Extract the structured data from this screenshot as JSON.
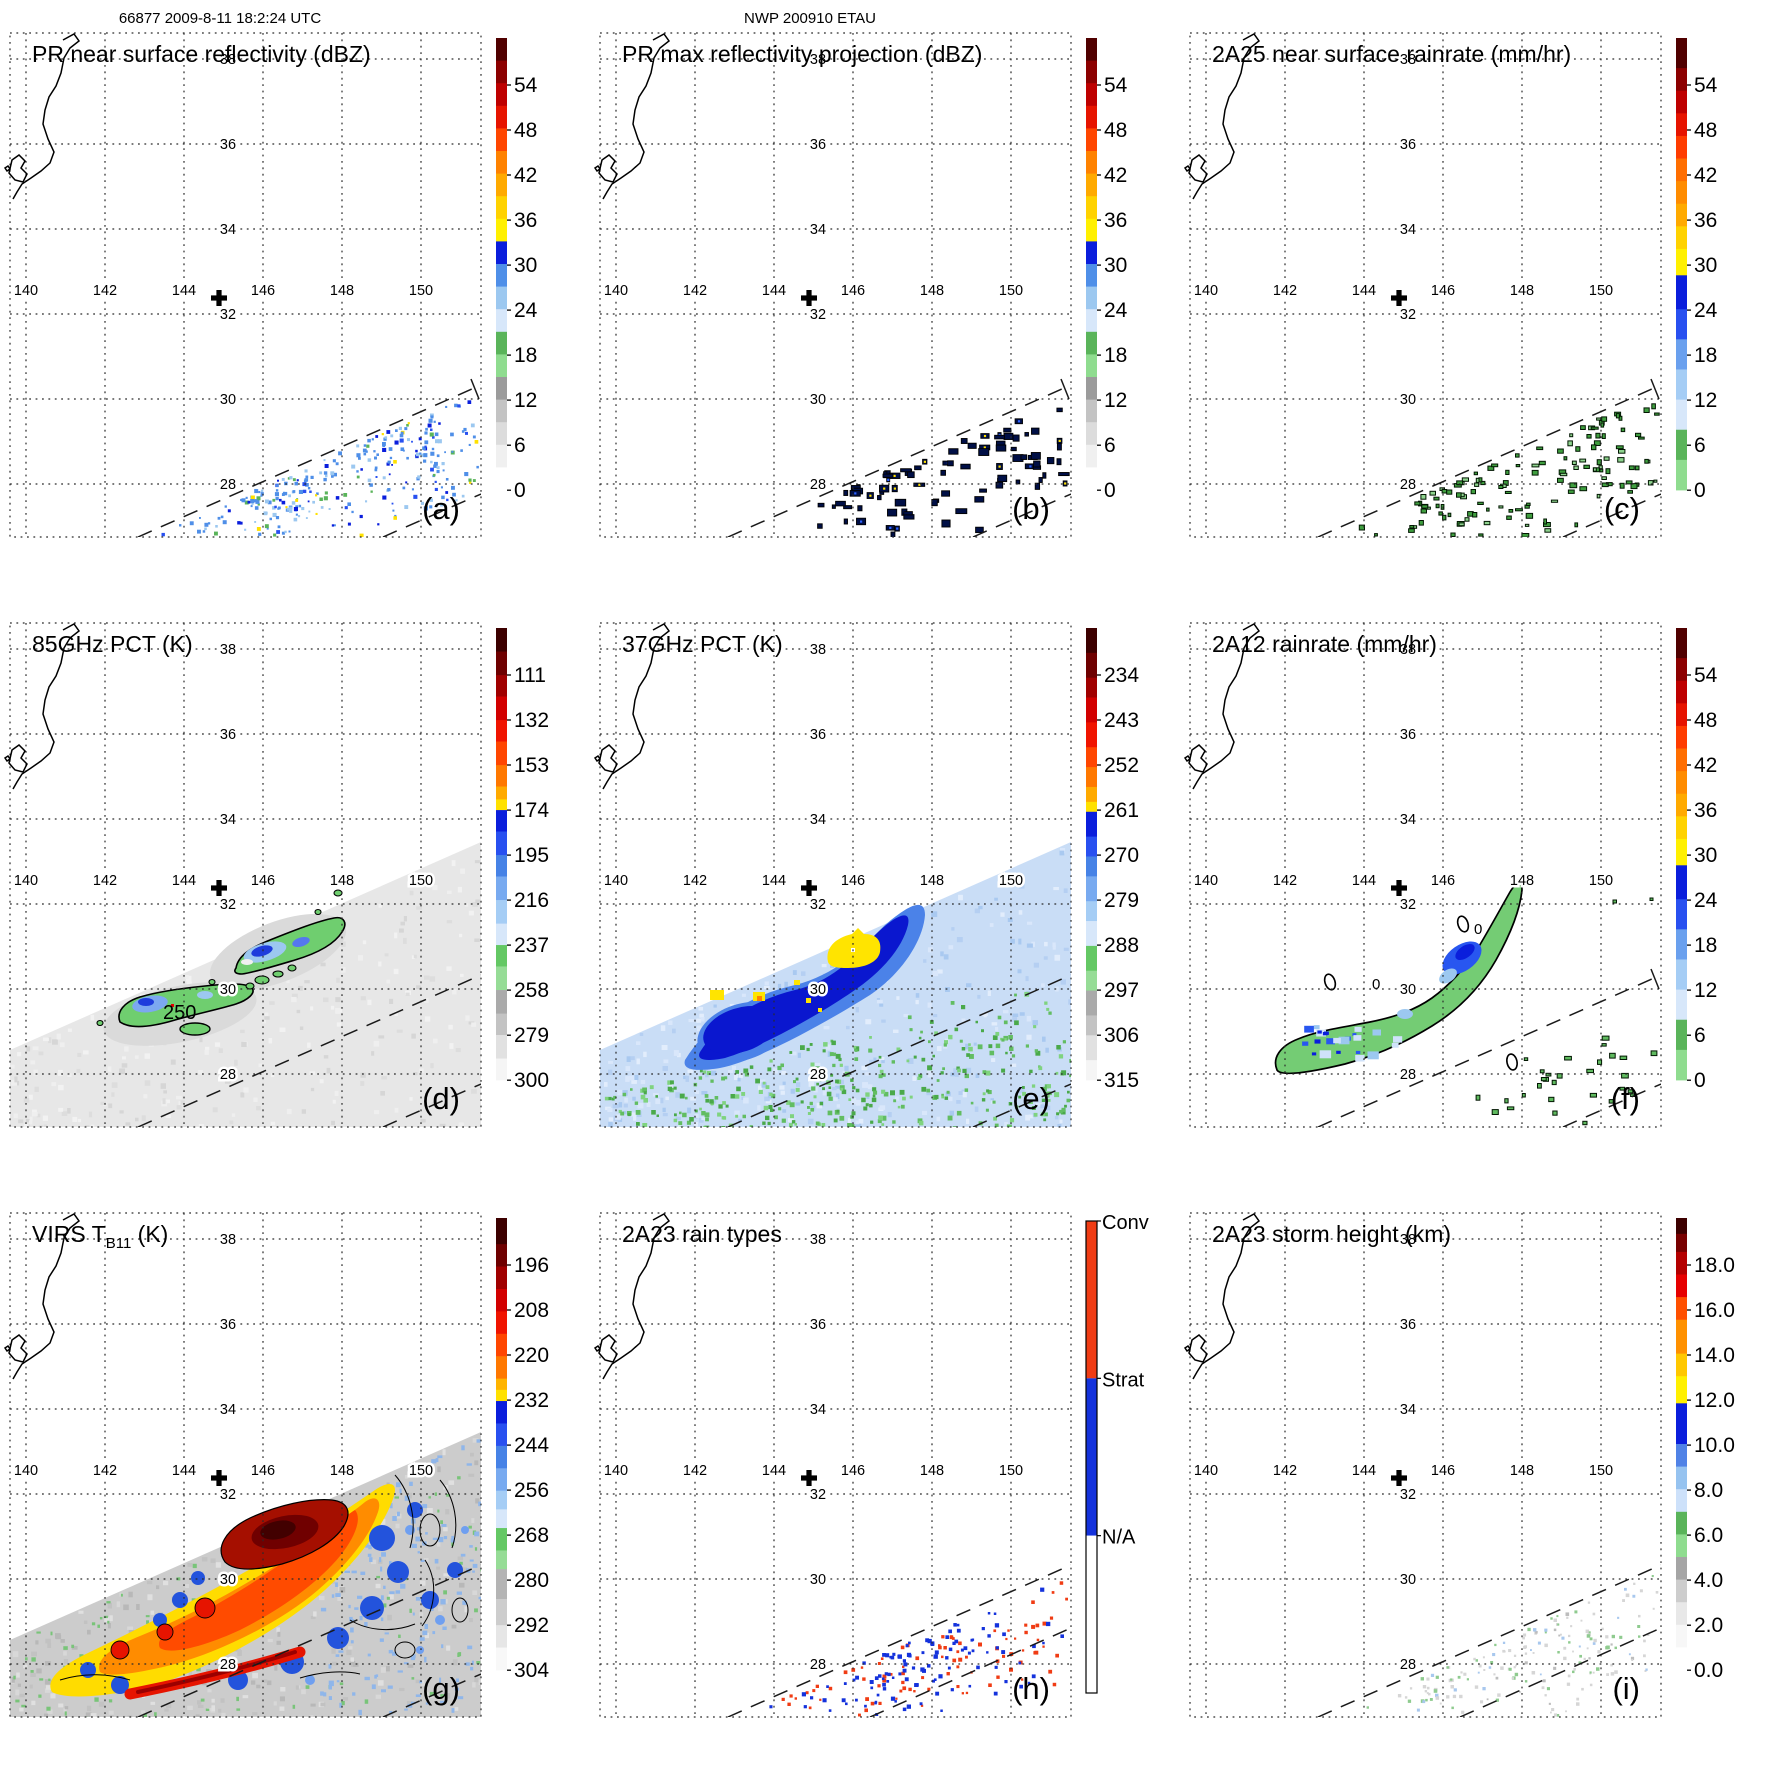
{
  "headers": {
    "left": "66877 2009-8-11 18:2:24 UTC",
    "center": "NWP 200910 ETAU"
  },
  "map": {
    "lon_labels": [
      "140",
      "142",
      "144",
      "146",
      "148",
      "150"
    ],
    "lat_labels": [
      "38",
      "36",
      "34",
      "32",
      "30",
      "28"
    ]
  },
  "cross_marker": {
    "lon": 145.5,
    "lat": 32.3
  },
  "chart_data": [
    {
      "panel": "a",
      "corner_label": "(a)",
      "title": "PR near surface reflectivity (dBZ)",
      "type": "satellite-swath-map",
      "units": "dBZ",
      "lon_range": [
        139.6,
        151.8
      ],
      "lat_range": [
        26.7,
        38.6
      ],
      "lon_gridlines": [
        140,
        142,
        144,
        146,
        148,
        150
      ],
      "lat_gridlines": [
        38,
        36,
        34,
        32,
        30,
        28
      ],
      "colorbar": {
        "ticks": [
          "54",
          "48",
          "42",
          "36",
          "30",
          "24",
          "18",
          "12",
          "6",
          "0"
        ],
        "segments": [
          [
            "#500000",
            3
          ],
          [
            "#8c0000",
            3
          ],
          [
            "#be0000",
            3
          ],
          [
            "#e61400",
            3
          ],
          [
            "#ff4600",
            3
          ],
          [
            "#ff8200",
            3
          ],
          [
            "#ffaa00",
            3
          ],
          [
            "#ffd200",
            3
          ],
          [
            "#fff000",
            3
          ],
          [
            "#0a1edc",
            3
          ],
          [
            "#4f8fe8",
            3
          ],
          [
            "#9cc8f0",
            3
          ],
          [
            "#d7e7fa",
            3
          ],
          [
            "#5ab45a",
            3
          ],
          [
            "#8fdc8f",
            3
          ],
          [
            "#9b9b9b",
            3
          ],
          [
            "#c3c3c3",
            3
          ],
          [
            "#dcdcdc",
            3
          ],
          [
            "#f0f0f0",
            3
          ],
          [
            "#ffffff",
            3
          ]
        ]
      },
      "content_note": "scattered blue radar-echo speckles with sparse green/yellow pixels inside the PR swath band southeast of the cross marker",
      "render": "speck_blue",
      "seed": 11
    },
    {
      "panel": "b",
      "corner_label": "(b)",
      "title": "PR max reflectivity projection (dBZ)",
      "type": "satellite-swath-map",
      "units": "dBZ",
      "lon_range": [
        139.6,
        151.8
      ],
      "lat_range": [
        26.7,
        38.6
      ],
      "lon_gridlines": [
        140,
        142,
        144,
        146,
        148,
        150
      ],
      "lat_gridlines": [
        38,
        36,
        34,
        32,
        30,
        28
      ],
      "colorbar": {
        "ticks": [
          "54",
          "48",
          "42",
          "36",
          "30",
          "24",
          "18",
          "12",
          "6",
          "0"
        ],
        "segments": [
          [
            "#500000",
            3
          ],
          [
            "#8c0000",
            3
          ],
          [
            "#be0000",
            3
          ],
          [
            "#e61400",
            3
          ],
          [
            "#ff4600",
            3
          ],
          [
            "#ff8200",
            3
          ],
          [
            "#ffaa00",
            3
          ],
          [
            "#ffd200",
            3
          ],
          [
            "#fff000",
            3
          ],
          [
            "#0a1edc",
            3
          ],
          [
            "#4f8fe8",
            3
          ],
          [
            "#9cc8f0",
            3
          ],
          [
            "#d7e7fa",
            3
          ],
          [
            "#5ab45a",
            3
          ],
          [
            "#8fdc8f",
            3
          ],
          [
            "#9b9b9b",
            3
          ],
          [
            "#c3c3c3",
            3
          ],
          [
            "#dcdcdc",
            3
          ],
          [
            "#f0f0f0",
            3
          ],
          [
            "#ffffff",
            3
          ]
        ]
      },
      "content_note": "dark navy outlined echo blobs, some with blue or yellow cores, inside PR swath band",
      "render": "blob_dark",
      "seed": 22
    },
    {
      "panel": "c",
      "corner_label": "(c)",
      "title": "2A25 near surface rainrate (mm/hr)",
      "type": "satellite-swath-map",
      "units": "mm/hr",
      "lon_range": [
        139.6,
        151.8
      ],
      "lat_range": [
        26.7,
        38.6
      ],
      "lon_gridlines": [
        140,
        142,
        144,
        146,
        148,
        150
      ],
      "lat_gridlines": [
        38,
        36,
        34,
        32,
        30,
        28
      ],
      "colorbar": {
        "ticks": [
          "54",
          "48",
          "42",
          "36",
          "30",
          "24",
          "18",
          "12",
          "6",
          "0"
        ],
        "segments": [
          [
            "#500000",
            4
          ],
          [
            "#8c0000",
            3
          ],
          [
            "#be0000",
            3
          ],
          [
            "#e61400",
            3
          ],
          [
            "#ff3c00",
            3
          ],
          [
            "#ff6e00",
            3
          ],
          [
            "#ff8c00",
            3
          ],
          [
            "#ffaa00",
            3
          ],
          [
            "#ffd200",
            3
          ],
          [
            "#fff000",
            3.5
          ],
          [
            "#0a1edc",
            4.5
          ],
          [
            "#2850f0",
            4
          ],
          [
            "#6aa0ee",
            4
          ],
          [
            "#a5cdf5",
            4
          ],
          [
            "#d7e7fa",
            4
          ],
          [
            "#5ab45a",
            4
          ],
          [
            "#8fdc8f",
            4
          ]
        ]
      },
      "content_note": "small dark-outlined green rain cells scattered in PR swath band",
      "render": "speck_green",
      "seed": 33
    },
    {
      "panel": "d",
      "corner_label": "(d)",
      "title": "85GHz PCT (K)",
      "type": "satellite-swath-map",
      "units": "K",
      "lon_range": [
        139.6,
        151.8
      ],
      "lat_range": [
        26.7,
        38.6
      ],
      "lon_gridlines": [
        140,
        142,
        144,
        146,
        148,
        150
      ],
      "lat_gridlines": [
        38,
        36,
        34,
        32,
        30,
        28
      ],
      "contour_label": "250",
      "colorbar": {
        "ticks": [
          "111",
          "132",
          "153",
          "174",
          "195",
          "216",
          "237",
          "258",
          "279",
          "300"
        ],
        "segments": [
          [
            "#3c0000",
            11
          ],
          [
            "#6e0000",
            11
          ],
          [
            "#a00000",
            10
          ],
          [
            "#d20000",
            11
          ],
          [
            "#f01400",
            10
          ],
          [
            "#ff4600",
            11
          ],
          [
            "#ff7800",
            10
          ],
          [
            "#ffaa00",
            6
          ],
          [
            "#ffe100",
            5
          ],
          [
            "#0a1edc",
            10
          ],
          [
            "#2850f0",
            11
          ],
          [
            "#4682e6",
            10
          ],
          [
            "#78aaf0",
            11
          ],
          [
            "#a5cdf5",
            11
          ],
          [
            "#d7e7fa",
            10
          ],
          [
            "#64c864",
            10
          ],
          [
            "#96dc96",
            11
          ],
          [
            "#aaaaaa",
            11
          ],
          [
            "#c3c3c3",
            10
          ],
          [
            "#e1e1e1",
            11
          ],
          [
            "#f5f5f5",
            10
          ]
        ]
      },
      "content_note": "light gray TMI swath with two green 250K-contoured depression blobs containing blue cores and one red pixel",
      "render": "pct85",
      "seed": 44
    },
    {
      "panel": "e",
      "corner_label": "(e)",
      "title": "37GHz PCT (K)",
      "type": "satellite-swath-map",
      "units": "K",
      "lon_range": [
        139.6,
        151.8
      ],
      "lat_range": [
        26.7,
        38.6
      ],
      "lon_gridlines": [
        140,
        142,
        144,
        146,
        148,
        150
      ],
      "lat_gridlines": [
        38,
        36,
        34,
        32,
        30,
        28
      ],
      "colorbar": {
        "ticks": [
          "234",
          "243",
          "252",
          "261",
          "270",
          "279",
          "288",
          "297",
          "306",
          "315"
        ],
        "segments": [
          [
            "#3c0000",
            5
          ],
          [
            "#6e0000",
            5
          ],
          [
            "#a00000",
            4
          ],
          [
            "#d20000",
            5
          ],
          [
            "#f01400",
            5
          ],
          [
            "#ff4600",
            4
          ],
          [
            "#ff7800",
            4
          ],
          [
            "#ffaa00",
            3
          ],
          [
            "#ffe100",
            2
          ],
          [
            "#0a1edc",
            5
          ],
          [
            "#2850f0",
            4
          ],
          [
            "#4682e6",
            4
          ],
          [
            "#78aaf0",
            5
          ],
          [
            "#a5cdf5",
            4
          ],
          [
            "#d7e7fa",
            5
          ],
          [
            "#64c864",
            5
          ],
          [
            "#96dc96",
            4
          ],
          [
            "#aaaaaa",
            5
          ],
          [
            "#c3c3c3",
            4
          ],
          [
            "#e1e1e1",
            5
          ],
          [
            "#f5f5f5",
            4
          ]
        ]
      },
      "content_note": "pale blue TMI swath, dark blue band along swath edge with yellow warm spots, green speckle field toward lower right",
      "render": "pct37",
      "seed": 55
    },
    {
      "panel": "f",
      "corner_label": "(f)",
      "title": "2A12 rainrate (mm/hr)",
      "type": "satellite-swath-map",
      "units": "mm/hr",
      "lon_range": [
        139.6,
        151.8
      ],
      "lat_range": [
        26.7,
        38.6
      ],
      "lon_gridlines": [
        140,
        142,
        144,
        146,
        148,
        150
      ],
      "lat_gridlines": [
        38,
        36,
        34,
        32,
        30,
        28
      ],
      "contour_labels": [
        "0",
        "0"
      ],
      "colorbar": {
        "ticks": [
          "54",
          "48",
          "42",
          "36",
          "30",
          "24",
          "18",
          "12",
          "6",
          "0"
        ],
        "segments": [
          [
            "#500000",
            4
          ],
          [
            "#8c0000",
            3
          ],
          [
            "#be0000",
            3
          ],
          [
            "#e61400",
            3
          ],
          [
            "#ff3c00",
            3
          ],
          [
            "#ff6e00",
            3
          ],
          [
            "#ff8c00",
            3
          ],
          [
            "#ffaa00",
            3
          ],
          [
            "#ffd200",
            3
          ],
          [
            "#fff000",
            3.5
          ],
          [
            "#0a1edc",
            4.5
          ],
          [
            "#2850f0",
            4
          ],
          [
            "#6aa0ee",
            4
          ],
          [
            "#a5cdf5",
            4
          ],
          [
            "#d7e7fa",
            4
          ],
          [
            "#5ab45a",
            4
          ],
          [
            "#8fdc8f",
            4
          ]
        ]
      },
      "content_note": "large black-outlined green rain shield with embedded blue cells, small 0-contour ellipses, scattered outlined green cells lower right",
      "render": "rain2a12",
      "seed": 66
    },
    {
      "panel": "g",
      "corner_label": "(g)",
      "title": "VIRS TB11 (K)",
      "title_parts": [
        {
          "t": "VIRS T"
        },
        {
          "t": "B11",
          "sub": true
        },
        {
          "t": " (K)"
        }
      ],
      "type": "satellite-swath-map",
      "units": "K",
      "lon_range": [
        139.6,
        151.8
      ],
      "lat_range": [
        26.7,
        38.6
      ],
      "lon_gridlines": [
        140,
        142,
        144,
        146,
        148,
        150
      ],
      "lat_gridlines": [
        38,
        36,
        34,
        32,
        30,
        28
      ],
      "colorbar": {
        "ticks": [
          "196",
          "208",
          "220",
          "232",
          "244",
          "256",
          "268",
          "280",
          "292",
          "304"
        ],
        "segments": [
          [
            "#3c0000",
            7
          ],
          [
            "#6e0000",
            6
          ],
          [
            "#a00000",
            6
          ],
          [
            "#d20000",
            6
          ],
          [
            "#f01400",
            6
          ],
          [
            "#ff4600",
            6
          ],
          [
            "#ff7800",
            6
          ],
          [
            "#ffb400",
            3
          ],
          [
            "#ffe100",
            3
          ],
          [
            "#0a1edc",
            6
          ],
          [
            "#2850f0",
            6
          ],
          [
            "#4682e6",
            6
          ],
          [
            "#78aaf0",
            6
          ],
          [
            "#a5cdf5",
            5
          ],
          [
            "#d7e7fa",
            5
          ],
          [
            "#64c864",
            6
          ],
          [
            "#96dc96",
            5
          ],
          [
            "#b4b4b4",
            8
          ],
          [
            "#cdcdcd",
            7
          ],
          [
            "#e6e6e6",
            6
          ],
          [
            "#f8f8f8",
            6
          ]
        ]
      },
      "content_note": "cold cloud-top field: dark red overshooting tops, broad orange/yellow canopy, blue fringes, gray contoured warm areas with green speckles",
      "render": "virs",
      "seed": 77
    },
    {
      "panel": "h",
      "corner_label": "(h)",
      "title": "2A23 rain types",
      "type": "satellite-swath-map",
      "units": "category",
      "lon_range": [
        139.6,
        151.8
      ],
      "lat_range": [
        26.7,
        38.6
      ],
      "lon_gridlines": [
        140,
        142,
        144,
        146,
        148,
        150
      ],
      "lat_gridlines": [
        38,
        36,
        34,
        32,
        30,
        28
      ],
      "colorbar": {
        "categories": [
          "Conv",
          "Strat",
          "N/A"
        ],
        "colors": [
          "#f03c14",
          "#1432dc",
          "#ffffff"
        ]
      },
      "content_note": "convective (orange-red) and stratiform (blue) rain-type pixels scattered between the PR swath edge dashed lines",
      "render": "raintype",
      "seed": 88
    },
    {
      "panel": "i",
      "corner_label": "(i)",
      "title": "2A23 storm height (km)",
      "type": "satellite-swath-map",
      "units": "km",
      "lon_range": [
        139.6,
        151.8
      ],
      "lat_range": [
        26.7,
        38.6
      ],
      "lon_gridlines": [
        140,
        142,
        144,
        146,
        148,
        150
      ],
      "lat_gridlines": [
        38,
        36,
        34,
        32,
        30,
        28
      ],
      "colorbar": {
        "ticks": [
          "18.0",
          "16.0",
          "14.0",
          "12.0",
          "10.0",
          "8.0",
          "6.0",
          "4.0",
          "2.0",
          "0.0"
        ],
        "segments": [
          [
            "#3c0000",
            0.7
          ],
          [
            "#780000",
            0.8
          ],
          [
            "#b40000",
            1
          ],
          [
            "#e60000",
            1
          ],
          [
            "#ff5000",
            1
          ],
          [
            "#ff9100",
            1.5
          ],
          [
            "#ffc800",
            1
          ],
          [
            "#fff000",
            1.2
          ],
          [
            "#0a1edc",
            1.8
          ],
          [
            "#5082e6",
            1
          ],
          [
            "#96c3f0",
            1
          ],
          [
            "#cde1fa",
            1
          ],
          [
            "#5ab45a",
            1
          ],
          [
            "#8fdc8f",
            1
          ],
          [
            "#a5a5a5",
            1
          ],
          [
            "#cdcdcd",
            1
          ],
          [
            "#e8e8e8",
            1
          ],
          [
            "#f7f7f7",
            1
          ],
          [
            "#ffffff",
            1
          ]
        ]
      },
      "content_note": "faint gray and green storm-height speckles (2-6 km) inside the PR swath band",
      "render": "height",
      "seed": 99
    }
  ]
}
